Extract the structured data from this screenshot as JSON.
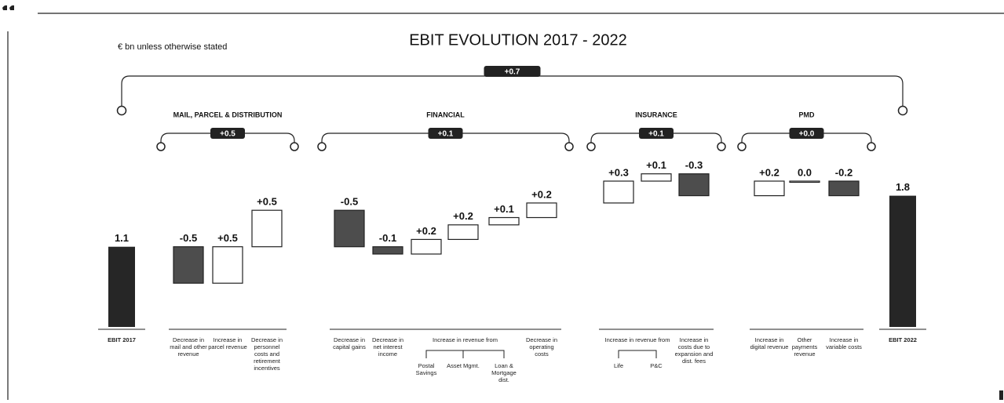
{
  "chart_data": {
    "type": "waterfall",
    "title": "EBIT EVOLUTION 2017 - 2022",
    "subtitle": "€ bn unless otherwise stated",
    "total_change": {
      "value": 0.7,
      "label": "+0.7"
    },
    "start": {
      "label": "EBIT 2017",
      "value": 1.1,
      "value_label": "1.1"
    },
    "end": {
      "label": "EBIT 2022",
      "value": 1.8,
      "value_label": "1.8"
    },
    "increase_color": "#ffffff",
    "decrease_color": "#4d4d4d",
    "total_color": "#262626",
    "groups": [
      {
        "name": "MAIL, PARCEL & DISTRIBUTION",
        "total": 0.5,
        "total_label": "+0.5",
        "items": [
          {
            "label": "Decrease in mail and other revenue",
            "value": -0.5,
            "value_label": "-0.5"
          },
          {
            "label": "Increase in parcel revenue",
            "value": 0.5,
            "value_label": "+0.5"
          },
          {
            "label": "Decrease in personnel costs and retirement incentives",
            "value": 0.5,
            "value_label": "+0.5"
          }
        ]
      },
      {
        "name": "FINANCIAL",
        "total": 0.1,
        "total_label": "+0.1",
        "items": [
          {
            "label": "Decrease in capital gains",
            "value": -0.5,
            "value_label": "-0.5"
          },
          {
            "label": "Decrease in net interest income",
            "value": -0.1,
            "value_label": "-0.1"
          },
          {
            "label": "Increase in revenue from",
            "parts": [
              {
                "label": "Postal Savings",
                "value": 0.2,
                "value_label": "+0.2"
              },
              {
                "label": "Asset Mgmt.",
                "value": 0.2,
                "value_label": "+0.2"
              },
              {
                "label": "Loan & Mortgage dist.",
                "value": 0.1,
                "value_label": "+0.1"
              }
            ]
          },
          {
            "label": "Decrease in operating costs",
            "value": 0.2,
            "value_label": "+0.2"
          }
        ]
      },
      {
        "name": "INSURANCE",
        "total": 0.1,
        "total_label": "+0.1",
        "items": [
          {
            "label": "Increase in revenue from",
            "parts": [
              {
                "label": "Life",
                "value": 0.3,
                "value_label": "+0.3"
              },
              {
                "label": "P&C",
                "value": 0.1,
                "value_label": "+0.1"
              }
            ]
          },
          {
            "label": "Increase in costs due to expansion and dist. fees",
            "value": -0.3,
            "value_label": "-0.3"
          }
        ]
      },
      {
        "name": "PMD",
        "total": 0.0,
        "total_label": "+0.0",
        "items": [
          {
            "label": "Increase in digital revenue",
            "value": 0.2,
            "value_label": "+0.2"
          },
          {
            "label": "Other payments revenue",
            "value": 0.0,
            "value_label": "0.0"
          },
          {
            "label": "Increase in variable costs",
            "value": -0.2,
            "value_label": "-0.2"
          }
        ]
      }
    ]
  }
}
